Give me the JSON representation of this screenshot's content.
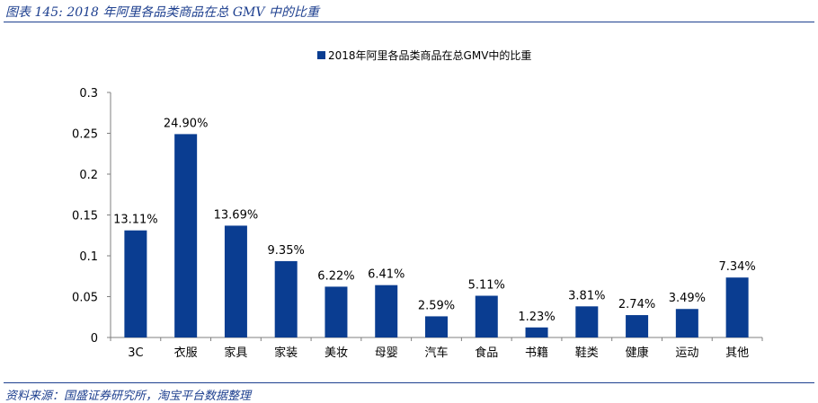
{
  "figure_title": "图表 145: 2018 年阿里各品类商品在总 GMV 中的比重",
  "source_text": "资料来源：国盛证券研究所，淘宝平台数据整理",
  "colors": {
    "bar": "#0a3d91",
    "accent": "#1d3f8f"
  },
  "chart_data": {
    "type": "bar",
    "title": "",
    "xlabel": "",
    "ylabel": "",
    "ylim": [
      0,
      0.3
    ],
    "yticks": [
      "0",
      "0.05",
      "0.1",
      "0.15",
      "0.2",
      "0.25",
      "0.3"
    ],
    "ytick_values": [
      0,
      0.05,
      0.1,
      0.15,
      0.2,
      0.25,
      0.3
    ],
    "grid": false,
    "legend_position": "top-center",
    "categories": [
      "3C",
      "衣服",
      "家具",
      "家装",
      "美妆",
      "母婴",
      "汽车",
      "食品",
      "书籍",
      "鞋类",
      "健康",
      "运动",
      "其他"
    ],
    "series": [
      {
        "name": "2018年阿里各品类商品在总GMV中的比重",
        "values": [
          0.1311,
          0.249,
          0.1369,
          0.0935,
          0.0622,
          0.0641,
          0.0259,
          0.0511,
          0.0123,
          0.0381,
          0.0274,
          0.0349,
          0.0734
        ],
        "labels": [
          "13.11%",
          "24.90%",
          "13.69%",
          "9.35%",
          "6.22%",
          "6.41%",
          "2.59%",
          "5.11%",
          "1.23%",
          "3.81%",
          "2.74%",
          "3.49%",
          "7.34%"
        ]
      }
    ]
  }
}
